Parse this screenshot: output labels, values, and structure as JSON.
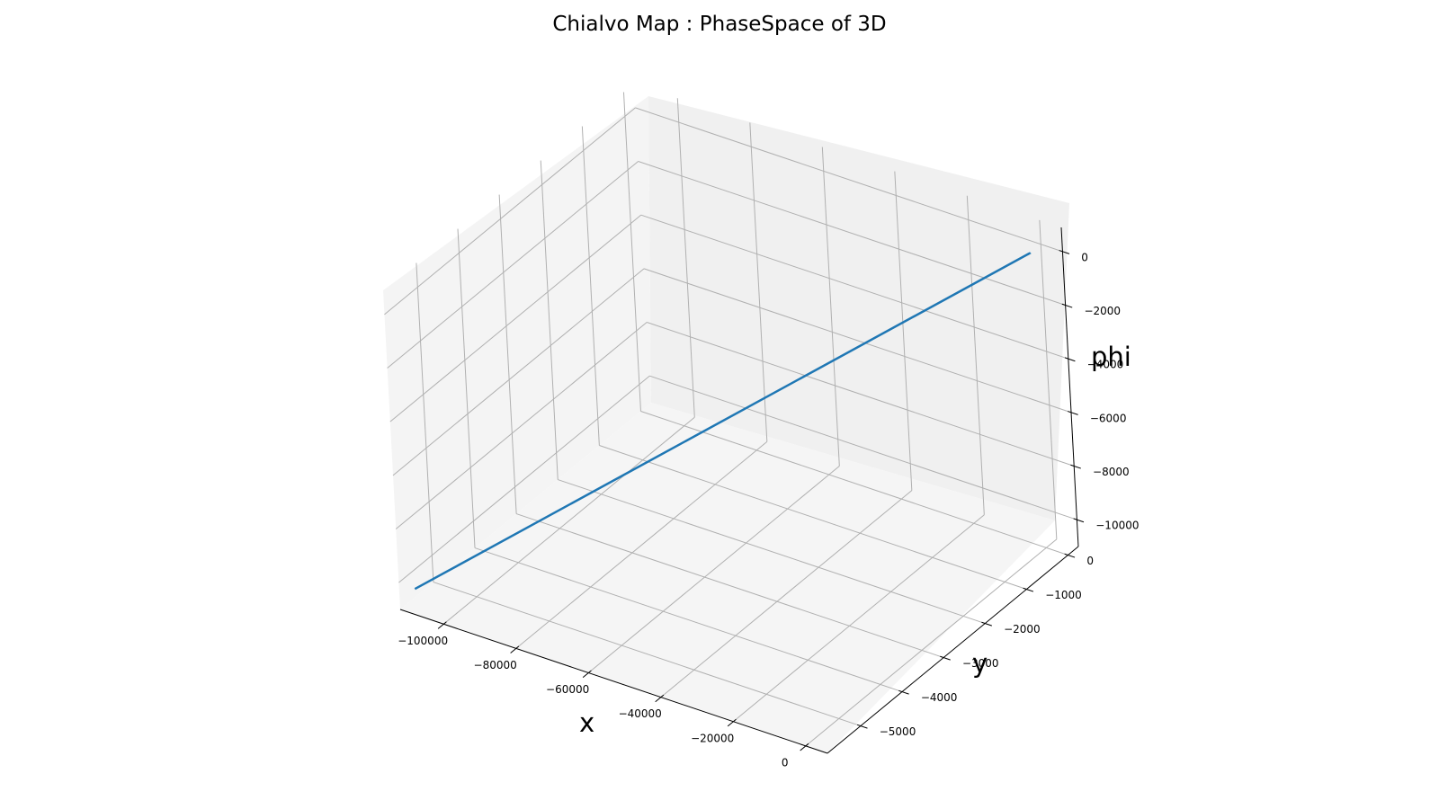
{
  "chart_data": {
    "type": "line",
    "title": "Chialvo Map : PhaseSpace of 3D",
    "xlabel": "x",
    "ylabel": "y",
    "zlabel": "phi",
    "xlim": [
      -112000,
      6000
    ],
    "ylim": [
      -5800,
      250
    ],
    "zlim": [
      -11000,
      900
    ],
    "grid": true,
    "x_ticks": [
      {
        "value": -100000,
        "label": "−100000"
      },
      {
        "value": -80000,
        "label": "−80000"
      },
      {
        "value": -60000,
        "label": "−60000"
      },
      {
        "value": -40000,
        "label": "−40000"
      },
      {
        "value": -20000,
        "label": "−20000"
      },
      {
        "value": 0,
        "label": "0"
      }
    ],
    "y_ticks": [
      {
        "value": 0,
        "label": "0"
      },
      {
        "value": -1000,
        "label": "−1000"
      },
      {
        "value": -2000,
        "label": "−2000"
      },
      {
        "value": -3000,
        "label": "−3000"
      },
      {
        "value": -4000,
        "label": "−4000"
      },
      {
        "value": -5000,
        "label": "−5000"
      }
    ],
    "z_ticks": [
      {
        "value": 0,
        "label": "0"
      },
      {
        "value": -2000,
        "label": "−2000"
      },
      {
        "value": -4000,
        "label": "−4000"
      },
      {
        "value": -6000,
        "label": "−6000"
      },
      {
        "value": -8000,
        "label": "−8000"
      },
      {
        "value": -10000,
        "label": "−10000"
      }
    ],
    "series": [
      {
        "color": "#1f77b4",
        "x": [
          1.5,
          -1.0,
          -110000
        ],
        "y": [
          0.0,
          -1.0,
          -5600
        ],
        "z": [
          0.0,
          -1.0,
          -10400
        ]
      }
    ]
  }
}
